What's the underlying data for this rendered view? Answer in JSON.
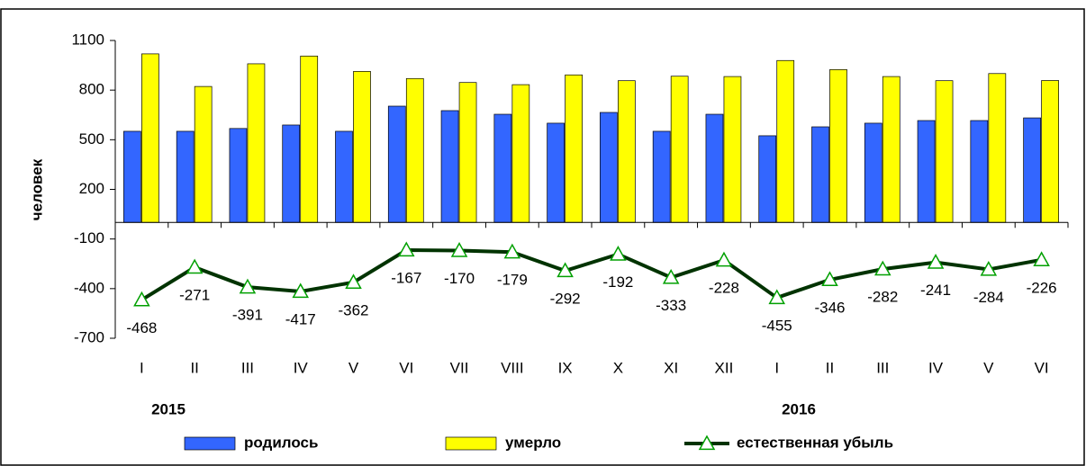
{
  "chart_data": {
    "type": "bar-line",
    "y_label": "человек",
    "categories": [
      "I",
      "II",
      "III",
      "IV",
      "V",
      "VI",
      "VII",
      "VIII",
      "IX",
      "X",
      "XI",
      "XII",
      "I",
      "II",
      "III",
      "IV",
      "V",
      "VI"
    ],
    "groups": [
      "2015",
      "2016"
    ],
    "series": [
      {
        "name": "родилось",
        "kind": "bar",
        "color": "#3366ff",
        "values": [
          551,
          551,
          568,
          589,
          551,
          703,
          676,
          654,
          600,
          665,
          551,
          654,
          524,
          578,
          600,
          616,
          616,
          632
        ]
      },
      {
        "name": "умерло",
        "kind": "bar",
        "color": "#ffff00",
        "values": [
          1019,
          822,
          959,
          1006,
          913,
          870,
          846,
          833,
          892,
          857,
          884,
          882,
          979,
          924,
          882,
          857,
          900,
          858
        ]
      },
      {
        "name": "естественная убыль",
        "kind": "line",
        "color": "#003300",
        "marker_color": "#00a000",
        "values": [
          -468,
          -271,
          -391,
          -417,
          -362,
          -167,
          -170,
          -179,
          -292,
          -192,
          -333,
          -228,
          -455,
          -346,
          -282,
          -241,
          -284,
          -226
        ]
      }
    ],
    "ylim": [
      -700,
      1100
    ],
    "yticks": [
      1100,
      800,
      500,
      200,
      -100,
      -400,
      -700
    ],
    "grid": false,
    "legend": "bottom"
  }
}
